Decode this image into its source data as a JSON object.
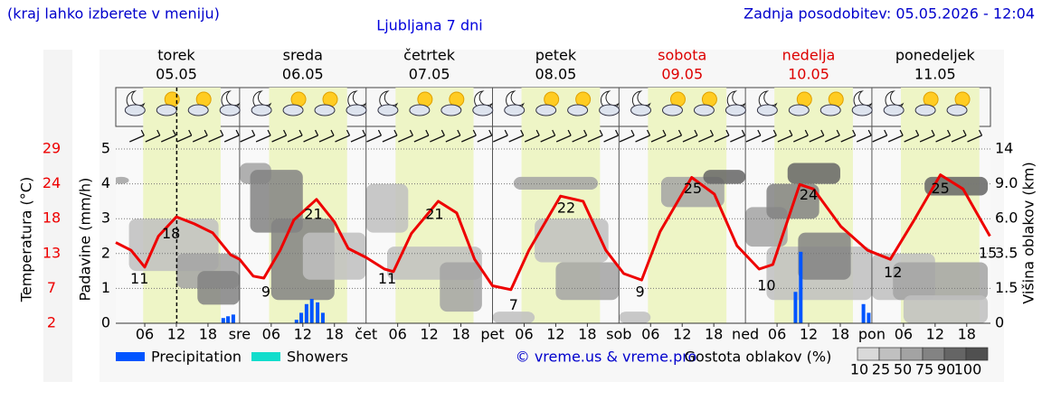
{
  "header": {
    "hint": "(kraj lahko izberete v meniju)",
    "updated": "Zadnja posodobitev: 05.05.2026 - 12:04"
  },
  "chart_data": {
    "type": "meteogram",
    "title": "Ljubljana 7 dni",
    "days": [
      {
        "name": "torek",
        "date": "05.05",
        "color": "#000000"
      },
      {
        "name": "sreda",
        "date": "06.05",
        "color": "#000000"
      },
      {
        "name": "četrtek",
        "date": "07.05",
        "color": "#000000"
      },
      {
        "name": "petek",
        "date": "08.05",
        "color": "#000000"
      },
      {
        "name": "sobota",
        "date": "09.05",
        "color": "#dd0000"
      },
      {
        "name": "nedelja",
        "date": "10.05",
        "color": "#dd0000"
      },
      {
        "name": "ponedeljek",
        "date": "11.05",
        "color": "#000000"
      }
    ],
    "xlim": [
      0.5,
      166.5
    ],
    "xticks": [
      {
        "value": 6,
        "label": "06"
      },
      12,
      18,
      {
        "value": 24,
        "label": "sre"
      },
      {
        "value": 30,
        "label": "06"
      },
      {
        "value": 36,
        "label": "12"
      },
      {
        "value": 42,
        "label": "18"
      },
      {
        "value": 48,
        "label": "čet"
      },
      {
        "value": 54,
        "label": "06"
      },
      {
        "value": 60,
        "label": "12"
      },
      {
        "value": 66,
        "label": "18"
      },
      {
        "value": 72,
        "label": "pet"
      },
      {
        "value": 78,
        "label": "06"
      },
      {
        "value": 84,
        "label": "12"
      },
      {
        "value": 90,
        "label": "18"
      },
      {
        "value": 96,
        "label": "sob"
      },
      {
        "value": 102,
        "label": "06"
      },
      {
        "value": 108,
        "label": "12"
      },
      {
        "value": 114,
        "label": "18"
      },
      {
        "value": 120,
        "label": "ned"
      },
      {
        "value": 126,
        "label": "06"
      },
      {
        "value": 132,
        "label": "12"
      },
      {
        "value": 138,
        "label": "18"
      },
      {
        "value": 144,
        "label": "pon"
      },
      {
        "value": 150,
        "label": "06"
      },
      {
        "value": 156,
        "label": "12"
      },
      {
        "value": 162,
        "label": "18"
      }
    ],
    "daylight": [
      [
        5.7,
        20.4
      ],
      [
        29.6,
        44.4
      ],
      [
        53.6,
        68.4
      ],
      [
        77.5,
        92.4
      ],
      [
        101.5,
        116.4
      ],
      [
        125.5,
        140.4
      ],
      [
        149.5,
        164.4
      ]
    ],
    "now": 12.07,
    "ylim": [
      0,
      5
    ],
    "yticks": [
      0,
      1,
      2,
      3,
      4,
      5
    ],
    "ylabel": "Padavine (mm/h)",
    "temp_axis": {
      "label": "Temperatura (°C)",
      "color": "#ee0000",
      "lim": [
        2,
        29
      ],
      "ticks": [
        2,
        {
          "value": 7.4,
          "label": "7"
        },
        {
          "value": 12.8,
          "label": "13"
        },
        {
          "value": 18.2,
          "label": "18"
        },
        {
          "value": 23.6,
          "label": "24"
        },
        29
      ]
    },
    "cloud_axis": {
      "label": "Višina oblakov (km)",
      "ticks": [
        0,
        1.5,
        3.5,
        {
          "value": 6,
          "label": "6.0"
        },
        {
          "value": 9,
          "label": "9.0"
        },
        14
      ]
    },
    "temperature": {
      "color": "#ee0000",
      "hours": [
        0.5,
        3.4,
        6,
        8.6,
        12,
        15.4,
        18.9,
        22.3,
        24,
        26.6,
        28.6,
        31.7,
        34.3,
        38.6,
        42,
        44.6,
        48,
        51.5,
        53.2,
        56.6,
        61.7,
        65.2,
        68.6,
        72,
        75.5,
        78.9,
        84.9,
        89.2,
        93.5,
        96.9,
        100.3,
        103.8,
        109.8,
        114.1,
        118.4,
        122.6,
        125.2,
        130.3,
        132.9,
        138.1,
        143.2,
        147.5,
        151.8,
        157,
        161.3,
        166.4
      ],
      "values": [
        14.5,
        13.3,
        10.7,
        15.5,
        18.5,
        17.4,
        16,
        12.6,
        11.9,
        9.3,
        9,
        13.3,
        18,
        21.2,
        17.7,
        13.6,
        12.2,
        10.4,
        10,
        15.9,
        20.9,
        19.1,
        11.9,
        7.8,
        7.2,
        13.3,
        21.7,
        20.9,
        13.3,
        9.7,
        8.7,
        16.2,
        24.6,
        22,
        14,
        10.4,
        11.1,
        23.5,
        22.8,
        17,
        13.3,
        11.9,
        17.7,
        25,
        22.8,
        15.5
      ]
    },
    "temperature_labels": {
      "hours": [
        5,
        11,
        29,
        38,
        52,
        61,
        76,
        86,
        100,
        110,
        124,
        132,
        148,
        157,
        166
      ],
      "values": [
        11,
        18,
        9,
        21,
        11,
        21,
        7,
        22,
        9,
        25,
        10,
        24,
        12,
        25,
        15
      ]
    },
    "series": [
      {
        "name": "Precipitation",
        "color": "#0055ff",
        "hours": [
          20.9,
          21.8,
          22.8,
          34.8,
          35.7,
          36.7,
          37.7,
          38.8,
          39.8,
          129.5,
          130.5,
          142.4,
          143.4
        ],
        "values": [
          0.15,
          0.2,
          0.25,
          0.1,
          0.3,
          0.55,
          0.7,
          0.6,
          0.3,
          0.9,
          2.05,
          0.55,
          0.3
        ]
      },
      {
        "name": "Showers",
        "color": "#11ddcc"
      }
    ],
    "clouds": {
      "label": "Gostota oblakov (%)",
      "levels": [
        10,
        25,
        50,
        75,
        90,
        100
      ],
      "colors": [
        "#d9d9d9",
        "#c0c0c0",
        "#a3a3a3",
        "#838383",
        "#656565",
        "#505050"
      ],
      "areas": [
        [
          0,
          3,
          9,
          10,
          50
        ],
        [
          3,
          20,
          2.5,
          6,
          25
        ],
        [
          12,
          24,
          1.5,
          3.5,
          50
        ],
        [
          16,
          24,
          0.8,
          2.5,
          75
        ],
        [
          24,
          30,
          9,
          12,
          50
        ],
        [
          26,
          36,
          5,
          11,
          75
        ],
        [
          30,
          42,
          1,
          6,
          75
        ],
        [
          36,
          48,
          2,
          5,
          25
        ],
        [
          48,
          56,
          5,
          9,
          25
        ],
        [
          52,
          70,
          2,
          4,
          25
        ],
        [
          62,
          70,
          0.5,
          3,
          50
        ],
        [
          72,
          80,
          0,
          0.5,
          25
        ],
        [
          76,
          92,
          8.5,
          10,
          50
        ],
        [
          80,
          94,
          3,
          6,
          25
        ],
        [
          84,
          96,
          1,
          3,
          50
        ],
        [
          96,
          102,
          0,
          0.5,
          25
        ],
        [
          104,
          116,
          7,
          10,
          50
        ],
        [
          112,
          120,
          9,
          11,
          90
        ],
        [
          120,
          128,
          4,
          7,
          50
        ],
        [
          124,
          134,
          6,
          9,
          75
        ],
        [
          128,
          138,
          9,
          12,
          90
        ],
        [
          124,
          144,
          1,
          4,
          25
        ],
        [
          130,
          140,
          2,
          5,
          75
        ],
        [
          144,
          156,
          1,
          3.5,
          25
        ],
        [
          148,
          166,
          1,
          3,
          50
        ],
        [
          154,
          166,
          8,
          10,
          90
        ],
        [
          150,
          166,
          0,
          1.2,
          25
        ]
      ]
    },
    "credit": "© vreme.us & vreme.pro"
  }
}
